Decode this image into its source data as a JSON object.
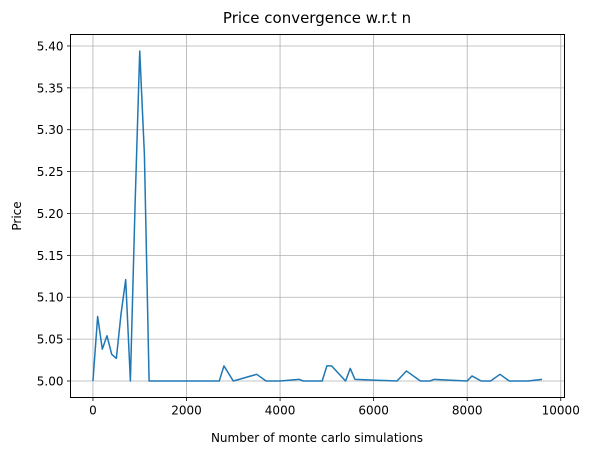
{
  "chart_data": {
    "type": "line",
    "title": "Price convergence w.r.t n",
    "xlabel": "Number of monte carlo simulations",
    "ylabel": "Price",
    "xlim": [
      -480,
      10080
    ],
    "ylim": [
      4.9803,
      5.4137
    ],
    "grid": true,
    "line_color": "#1f77b4",
    "x_ticks": [
      0,
      2000,
      4000,
      6000,
      8000,
      10000
    ],
    "x_tick_labels": [
      "0",
      "2000",
      "4000",
      "6000",
      "8000",
      "10000"
    ],
    "y_ticks": [
      5.0,
      5.05,
      5.1,
      5.15,
      5.2,
      5.25,
      5.3,
      5.35,
      5.4
    ],
    "y_tick_labels": [
      "5.00",
      "5.05",
      "5.10",
      "5.15",
      "5.20",
      "5.25",
      "5.30",
      "5.35",
      "5.40"
    ],
    "series": [
      {
        "x": [
          0,
          100,
          200,
          300,
          400,
          500,
          600,
          700,
          800,
          900,
          1000,
          1100,
          1200,
          1500,
          2000,
          2500,
          2700,
          2800,
          3000,
          3500,
          3700,
          4000,
          4400,
          4500,
          4900,
          5000,
          5100,
          5400,
          5500,
          5600,
          6000,
          6500,
          6700,
          7000,
          7200,
          7300,
          7600,
          8000,
          8100,
          8300,
          8500,
          8700,
          8900,
          9300,
          9600
        ],
        "y": [
          5.0,
          5.077,
          5.038,
          5.054,
          5.032,
          5.027,
          5.08,
          5.121,
          5.0,
          5.21,
          5.394,
          5.27,
          5.0,
          5.0,
          5.0,
          5.0,
          5.0,
          5.018,
          5.0,
          5.008,
          5.0,
          5.0,
          5.002,
          5.0,
          5.0,
          5.018,
          5.018,
          5.0,
          5.015,
          5.002,
          5.001,
          5.0,
          5.012,
          5.0,
          5.0,
          5.002,
          5.001,
          5.0,
          5.006,
          5.0,
          5.0,
          5.008,
          5.0,
          5.0,
          5.002
        ]
      }
    ]
  }
}
